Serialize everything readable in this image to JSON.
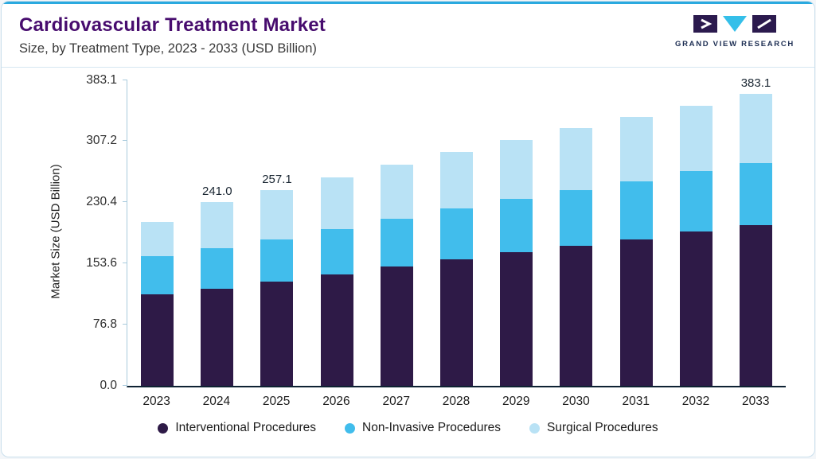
{
  "header": {
    "title": "Cardiovascular Treatment Market",
    "subtitle": "Size, by Treatment Type, 2023 - 2033 (USD Billion)"
  },
  "logo": {
    "text": "GRAND VIEW RESEARCH"
  },
  "colors": {
    "accent_line": "#2aa9df",
    "title_text": "#470c6e",
    "interventional": "#2E1A47",
    "non_invasive": "#41BDEC",
    "surgical": "#B9E2F5"
  },
  "chart_data": {
    "type": "bar",
    "stacked": true,
    "title": "Cardiovascular Treatment Market Size, by Treatment Type, 2023 - 2033 (USD Billion)",
    "xlabel": "",
    "ylabel": "Market Size (USD Billion)",
    "ylim": [
      0,
      383.1
    ],
    "yticks": [
      0.0,
      76.8,
      153.6,
      230.4,
      307.2,
      383.1
    ],
    "grid": false,
    "legend_position": "bottom",
    "categories": [
      "2023",
      "2024",
      "2025",
      "2026",
      "2027",
      "2028",
      "2029",
      "2030",
      "2031",
      "2032",
      "2033"
    ],
    "series": [
      {
        "name": "Interventional Procedures",
        "color": "#2E1A47",
        "values": [
          119.8,
          127.3,
          136.9,
          146.2,
          156.6,
          166.1,
          175.8,
          184.0,
          192.0,
          202.6,
          211.0
        ]
      },
      {
        "name": "Non-Invasive Procedures",
        "color": "#41BDEC",
        "values": [
          50.2,
          53.7,
          55.1,
          59.8,
          62.4,
          66.9,
          70.2,
          73.0,
          76.0,
          79.4,
          82.0
        ]
      },
      {
        "name": "Surgical Procedures",
        "color": "#B9E2F5",
        "values": [
          45.0,
          60.0,
          65.1,
          67.5,
          71.2,
          74.0,
          76.5,
          81.0,
          84.8,
          85.5,
          90.1
        ]
      }
    ],
    "totals": [
      215.0,
      241.0,
      257.1,
      273.5,
      290.2,
      307.0,
      322.5,
      338.0,
      352.8,
      367.5,
      383.1
    ],
    "value_labels": [
      "",
      "241.0",
      "257.1",
      "",
      "",
      "",
      "",
      "",
      "",
      "",
      "383.1"
    ]
  }
}
